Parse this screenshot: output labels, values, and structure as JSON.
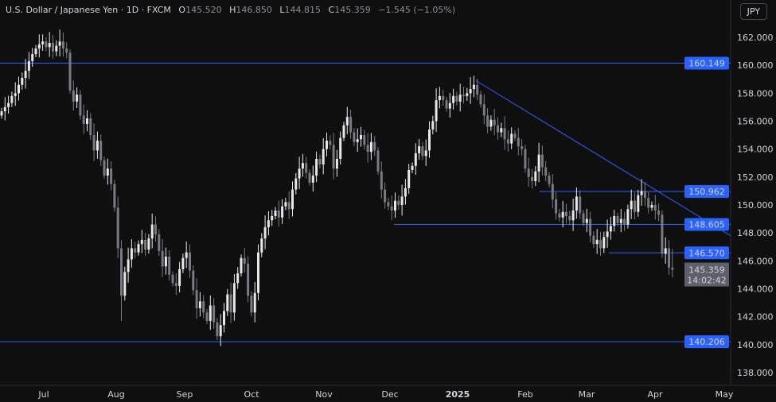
{
  "header": {
    "symbol": "U.S. Dollar / Japanese Yen · 1D · FXCM",
    "open_label": "O",
    "open": "145.520",
    "high_label": "H",
    "high": "146.850",
    "low_label": "L",
    "low": "144.815",
    "close_label": "C",
    "close": "145.359",
    "change": "−1.545 (−1.05%)",
    "currency_button": "JPY"
  },
  "colors": {
    "background": "#0f0f0f",
    "up": "#e8e8e8",
    "down": "#787b86",
    "level_line": "#2962ff",
    "level_label": "#2962ff",
    "price_label": "#5d606b"
  },
  "chart_data": {
    "type": "candlestick",
    "title": "U.S. Dollar / Japanese Yen · 1D · FXCM",
    "ylim": [
      137,
      163.5
    ],
    "y_ticks": [
      "162.000",
      "160.000",
      "158.000",
      "156.000",
      "154.000",
      "152.000",
      "150.000",
      "148.000",
      "146.000",
      "144.000",
      "142.000",
      "140.000",
      "138.000"
    ],
    "x_ticks": [
      "Jul",
      "Aug",
      "Sep",
      "Oct",
      "Nov",
      "Dec",
      "2025",
      "Feb",
      "Mar",
      "Apr",
      "May"
    ],
    "grid": false,
    "closes": [
      156.7,
      157.0,
      157.3,
      157.8,
      158.0,
      158.6,
      159.1,
      159.6,
      160.3,
      160.8,
      161.2,
      161.5,
      161.7,
      161.3,
      161.6,
      161.0,
      161.4,
      161.7,
      161.2,
      160.9,
      158.2,
      157.4,
      157.9,
      156.4,
      155.8,
      156.2,
      155.0,
      153.9,
      154.6,
      153.2,
      152.1,
      152.6,
      151.5,
      149.8,
      146.9,
      143.5,
      145.2,
      146.1,
      146.9,
      146.6,
      147.2,
      147.5,
      146.8,
      147.6,
      148.6,
      147.9,
      146.7,
      145.6,
      146.3,
      145.0,
      144.4,
      144.2,
      145.4,
      146.2,
      146.6,
      145.3,
      143.9,
      142.6,
      143.1,
      142.3,
      141.7,
      142.8,
      141.6,
      140.6,
      141.4,
      142.4,
      143.6,
      142.3,
      144.4,
      145.1,
      146.2,
      145.8,
      143.5,
      142.3,
      143.7,
      146.6,
      147.6,
      148.4,
      148.9,
      149.2,
      149.6,
      149.1,
      149.9,
      150.2,
      149.7,
      151.1,
      151.9,
      152.6,
      153.0,
      152.3,
      151.6,
      152.1,
      153.3,
      152.9,
      154.0,
      154.6,
      154.3,
      152.6,
      153.3,
      154.8,
      155.7,
      156.3,
      155.2,
      154.5,
      154.7,
      155.0,
      154.3,
      153.8,
      154.5,
      153.9,
      152.4,
      151.1,
      150.2,
      149.9,
      149.6,
      150.3,
      150.0,
      150.6,
      151.2,
      152.5,
      152.8,
      153.7,
      154.2,
      153.5,
      153.9,
      155.4,
      156.0,
      157.5,
      157.8,
      157.5,
      156.9,
      157.3,
      157.8,
      157.4,
      157.9,
      157.8,
      158.0,
      158.3,
      158.6,
      157.9,
      157.2,
      156.4,
      155.6,
      156.1,
      155.7,
      155.2,
      155.5,
      154.7,
      154.4,
      155.1,
      154.8,
      154.2,
      154.0,
      152.6,
      152.0,
      151.7,
      152.4,
      153.6,
      152.7,
      152.1,
      151.5,
      150.4,
      149.4,
      149.1,
      149.5,
      149.2,
      148.9,
      149.6,
      150.6,
      149.4,
      148.7,
      149.0,
      147.8,
      147.2,
      147.5,
      146.9,
      147.7,
      148.1,
      148.5,
      149.2,
      148.7,
      149.0,
      148.6,
      149.7,
      150.3,
      149.5,
      150.7,
      151.0,
      150.5,
      149.8,
      150.0,
      149.6,
      149.3,
      146.5,
      146.9,
      145.52
    ],
    "last_candle": {
      "open": 145.52,
      "high": 146.85,
      "low": 144.815,
      "close": 145.359
    },
    "levels": [
      {
        "price": 160.149,
        "label": "160.149"
      },
      {
        "price": 150.962,
        "label": "150.962"
      },
      {
        "price": 148.605,
        "label": "148.605"
      },
      {
        "price": 146.57,
        "label": "146.570"
      },
      {
        "price": 140.206,
        "label": "140.206"
      }
    ],
    "trendline": {
      "from_price": 158.9,
      "to_price": 147.8
    },
    "last_price_label": "145.359",
    "countdown": "14:02:42"
  }
}
